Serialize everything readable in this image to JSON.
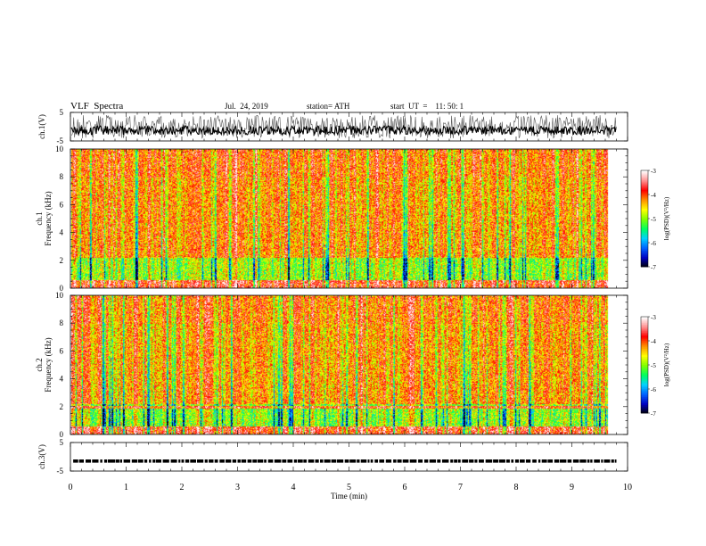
{
  "header": {
    "title": "VLF  Spectra",
    "date": "Jul.  24, 2019",
    "station": "station= ATH",
    "start": "start  UT  =    11: 50: 1"
  },
  "chart_data": [
    {
      "type": "line",
      "ylabel": "ch.1(V)",
      "ylim": [
        -5,
        5
      ],
      "yticks": [
        "5",
        "-5"
      ],
      "xlim": [
        0,
        10
      ],
      "description_series": "voltage waveform"
    },
    {
      "type": "heatmap",
      "ylabel": "Frequency  (kHz)",
      "channel_label": "ch.1",
      "ylim": [
        0,
        10
      ],
      "yticks": [
        "0",
        "2",
        "4",
        "6",
        "8",
        "10"
      ],
      "xlim": [
        0,
        10
      ],
      "colorbar": {
        "label": "log(PSD)(V²/Hz)",
        "ticks": [
          "-3",
          "-4",
          "-5",
          "-6",
          "-7"
        ],
        "range": [
          -7,
          -3
        ]
      }
    },
    {
      "type": "heatmap",
      "ylabel": "Frequency  (kHz)",
      "channel_label": "ch.2",
      "ylim": [
        0,
        10
      ],
      "yticks": [
        "0",
        "2",
        "4",
        "6",
        "8",
        "10"
      ],
      "xlim": [
        0,
        10
      ],
      "colorbar": {
        "label": "log(PSD)(V²/Hz)",
        "ticks": [
          "-3",
          "-4",
          "-5",
          "-6",
          "-7"
        ],
        "range": [
          -7,
          -3
        ]
      }
    },
    {
      "type": "line",
      "ylabel": "ch.3(V)",
      "ylim": [
        -5,
        5
      ],
      "yticks": [
        "5",
        "-5"
      ],
      "xlim": [
        0,
        10
      ],
      "level": -1.5
    }
  ],
  "xaxis": {
    "label": "Time  (min)",
    "ticks": [
      "0",
      "1",
      "2",
      "3",
      "4",
      "5",
      "6",
      "7",
      "8",
      "9",
      "10"
    ]
  },
  "colors": {
    "spectrum_scale": [
      "#000000",
      "#0000c0",
      "#0060ff",
      "#00d0ff",
      "#00ff60",
      "#80ff00",
      "#ffff00",
      "#ff9000",
      "#ff0000",
      "#ff9090",
      "#ffffff"
    ]
  }
}
